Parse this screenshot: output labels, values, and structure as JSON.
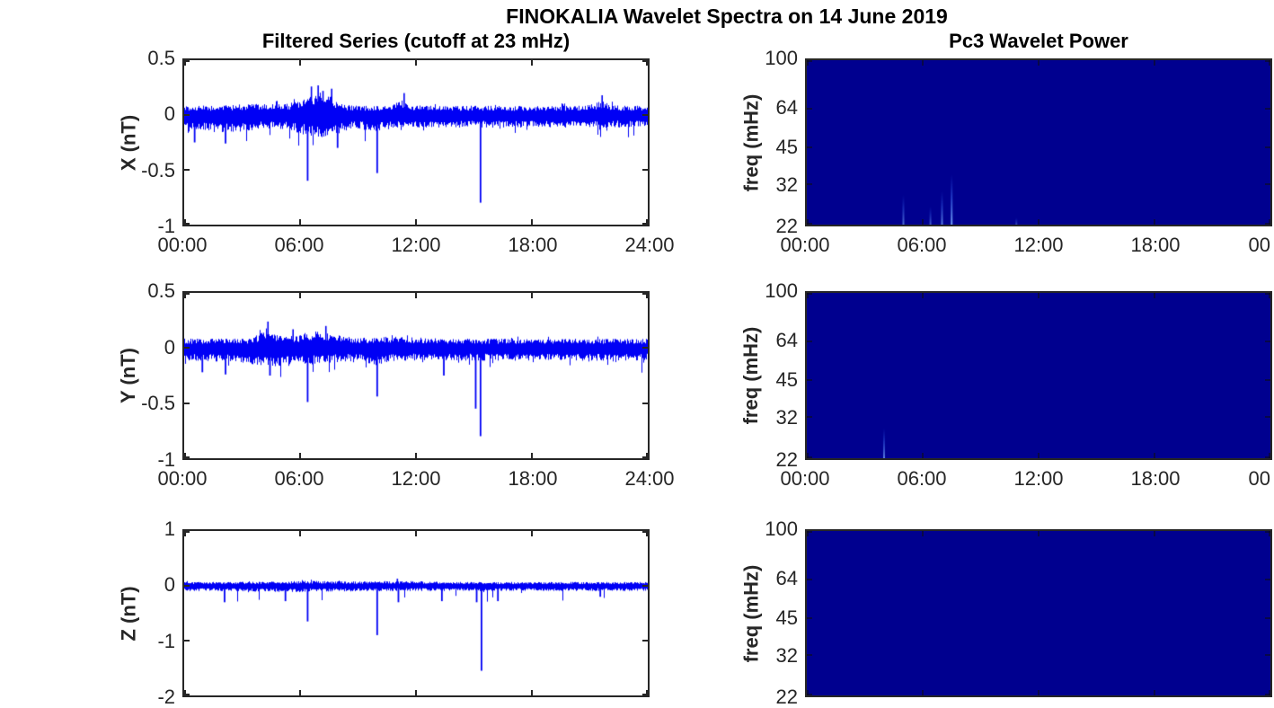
{
  "figure": {
    "title": "FINOKALIA Wavelet Spectra on 14 June 2019"
  },
  "colors": {
    "series_line": "#0000F5",
    "wavelet_background": "#00008F",
    "wavelet_streak": "#5A96FF",
    "axis": "#262626",
    "background": "#FFFFFF"
  },
  "chart_data": [
    {
      "id": "filtered-x",
      "type": "line",
      "title": "Filtered Series (cutoff at 23 mHz)",
      "ylabel": "X (nT)",
      "ylim": [
        -1,
        0.5
      ],
      "yticks": [
        0.5,
        0,
        -0.5,
        -1
      ],
      "xticks": [
        "00:00",
        "06:00",
        "12:00",
        "18:00",
        "24:00"
      ],
      "x_range_hours": [
        0,
        24
      ],
      "noise_band_nT": [
        -0.12,
        0.1
      ],
      "peaks": [
        {
          "hour": 6.55,
          "value": 0.26
        },
        {
          "hour": 6.9,
          "value": 0.27
        },
        {
          "hour": 7.15,
          "value": 0.22
        },
        {
          "hour": 7.6,
          "value": 0.24
        },
        {
          "hour": 11.35,
          "value": 0.2
        },
        {
          "hour": 21.6,
          "value": 0.18
        }
      ],
      "spikes": [
        {
          "hour": 0.5,
          "value": -0.25
        },
        {
          "hour": 2.1,
          "value": -0.26
        },
        {
          "hour": 6.35,
          "value": -0.6
        },
        {
          "hour": 7.9,
          "value": -0.3
        },
        {
          "hour": 9.95,
          "value": -0.53
        },
        {
          "hour": 15.3,
          "value": -0.8
        }
      ]
    },
    {
      "id": "filtered-y",
      "type": "line",
      "title": "",
      "ylabel": "Y (nT)",
      "ylim": [
        -1,
        0.5
      ],
      "yticks": [
        0.5,
        0,
        -0.5,
        -1
      ],
      "xticks": [
        "00:00",
        "06:00",
        "12:00",
        "18:00",
        "24:00"
      ],
      "x_range_hours": [
        0,
        24
      ],
      "noise_band_nT": [
        -0.13,
        0.1
      ],
      "peaks": [
        {
          "hour": 4.3,
          "value": 0.24
        },
        {
          "hour": 5.6,
          "value": 0.17
        },
        {
          "hour": 7.3,
          "value": 0.2
        }
      ],
      "spikes": [
        {
          "hour": 0.9,
          "value": -0.22
        },
        {
          "hour": 2.1,
          "value": -0.24
        },
        {
          "hour": 4.4,
          "value": -0.25
        },
        {
          "hour": 6.35,
          "value": -0.49
        },
        {
          "hour": 9.95,
          "value": -0.44
        },
        {
          "hour": 13.4,
          "value": -0.25
        },
        {
          "hour": 15.05,
          "value": -0.55
        },
        {
          "hour": 15.3,
          "value": -0.8
        }
      ]
    },
    {
      "id": "filtered-z",
      "type": "line",
      "title": "",
      "ylabel": "Z (nT)",
      "ylim": [
        -2,
        1
      ],
      "yticks": [
        1,
        0,
        -1,
        -2
      ],
      "xticks": [],
      "x_range_hours": [
        0,
        24
      ],
      "noise_band_nT": [
        -0.1,
        0.08
      ],
      "peaks": [
        {
          "hour": 11.0,
          "value": 0.13
        }
      ],
      "spikes": [
        {
          "hour": 2.05,
          "value": -0.3
        },
        {
          "hour": 5.2,
          "value": -0.28
        },
        {
          "hour": 6.35,
          "value": -0.65
        },
        {
          "hour": 9.95,
          "value": -0.9
        },
        {
          "hour": 11.05,
          "value": -0.3
        },
        {
          "hour": 13.3,
          "value": -0.28
        },
        {
          "hour": 15.1,
          "value": -0.3
        },
        {
          "hour": 15.35,
          "value": -1.55
        },
        {
          "hour": 16.2,
          "value": -0.28
        },
        {
          "hour": 21.5,
          "value": -0.2
        }
      ]
    },
    {
      "id": "pc3-wavelet-x",
      "type": "heatmap",
      "title": "Pc3 Wavelet Power",
      "ylabel": "freq (mHz)",
      "yscale": "log",
      "ylim": [
        22,
        100
      ],
      "yticks": [
        100,
        64,
        45,
        32,
        22
      ],
      "xticks": [
        "00:00",
        "06:00",
        "12:00",
        "18:00",
        "00"
      ],
      "x_range_hours": [
        0,
        24
      ],
      "background_power": "low (uniform dark blue)",
      "events": [
        {
          "hour": 5.0,
          "top_freq_mHz": 29,
          "intensity": 0.6
        },
        {
          "hour": 6.4,
          "top_freq_mHz": 26,
          "intensity": 0.5
        },
        {
          "hour": 7.0,
          "top_freq_mHz": 30,
          "intensity": 0.7
        },
        {
          "hour": 7.5,
          "top_freq_mHz": 35,
          "intensity": 0.9
        },
        {
          "hour": 10.85,
          "top_freq_mHz": 23.5,
          "intensity": 0.35
        }
      ]
    },
    {
      "id": "pc3-wavelet-y",
      "type": "heatmap",
      "title": "",
      "ylabel": "freq (mHz)",
      "yscale": "log",
      "ylim": [
        22,
        100
      ],
      "yticks": [
        100,
        64,
        45,
        32,
        22
      ],
      "xticks": [
        "00:00",
        "06:00",
        "12:00",
        "18:00",
        "00"
      ],
      "x_range_hours": [
        0,
        24
      ],
      "background_power": "low (uniform dark blue)",
      "events": [
        {
          "hour": 4.0,
          "top_freq_mHz": 29,
          "intensity": 0.7
        }
      ]
    },
    {
      "id": "pc3-wavelet-z",
      "type": "heatmap",
      "title": "",
      "ylabel": "freq (mHz)",
      "yscale": "log",
      "ylim": [
        22,
        100
      ],
      "yticks": [
        100,
        64,
        45,
        32,
        22
      ],
      "xticks": [],
      "x_range_hours": [
        0,
        24
      ],
      "background_power": "low (uniform dark blue)",
      "events": []
    }
  ]
}
